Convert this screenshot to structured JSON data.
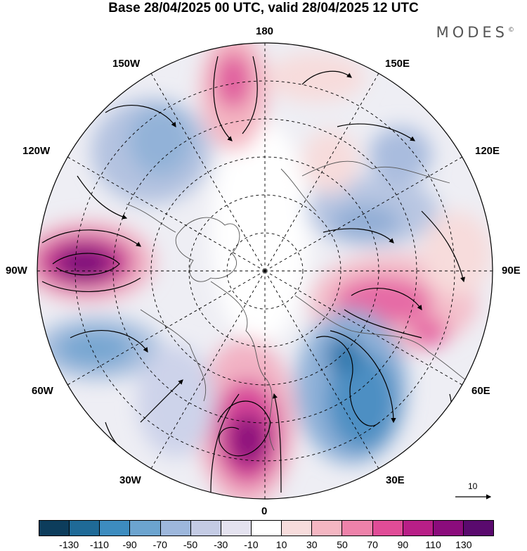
{
  "title": "Base 28/04/2025 00 UTC, valid 28/04/2025 12 UTC",
  "brand": "MODES",
  "brand_mark": "©",
  "lon_labels": {
    "l180": "180",
    "l150w": "150W",
    "l150e": "150E",
    "l120w": "120W",
    "l120e": "120E",
    "l90w": "90W",
    "l90e": "90E",
    "l60w": "60W",
    "l60e": "60E",
    "l30w": "30W",
    "l30e": "30E",
    "l0": "0"
  },
  "vector_scale_label": "10",
  "colorbar": {
    "colors": [
      "#0d3d5c",
      "#1f6a97",
      "#3d8cbf",
      "#6ca4cf",
      "#9db7dc",
      "#c4cbe4",
      "#e4e2ef",
      "#ffffff",
      "#f7dcdc",
      "#f4b6c2",
      "#ee82aa",
      "#e04c97",
      "#b81f87",
      "#8b0c7c",
      "#5a0a6e"
    ],
    "ticks": [
      "-130",
      "-110",
      "-90",
      "-70",
      "-50",
      "-30",
      "-10",
      "10",
      "30",
      "50",
      "70",
      "90",
      "110",
      "130"
    ]
  },
  "map_colors": {
    "projection_outline": "#000000",
    "coastline": "#444444",
    "grid": "#000000"
  }
}
